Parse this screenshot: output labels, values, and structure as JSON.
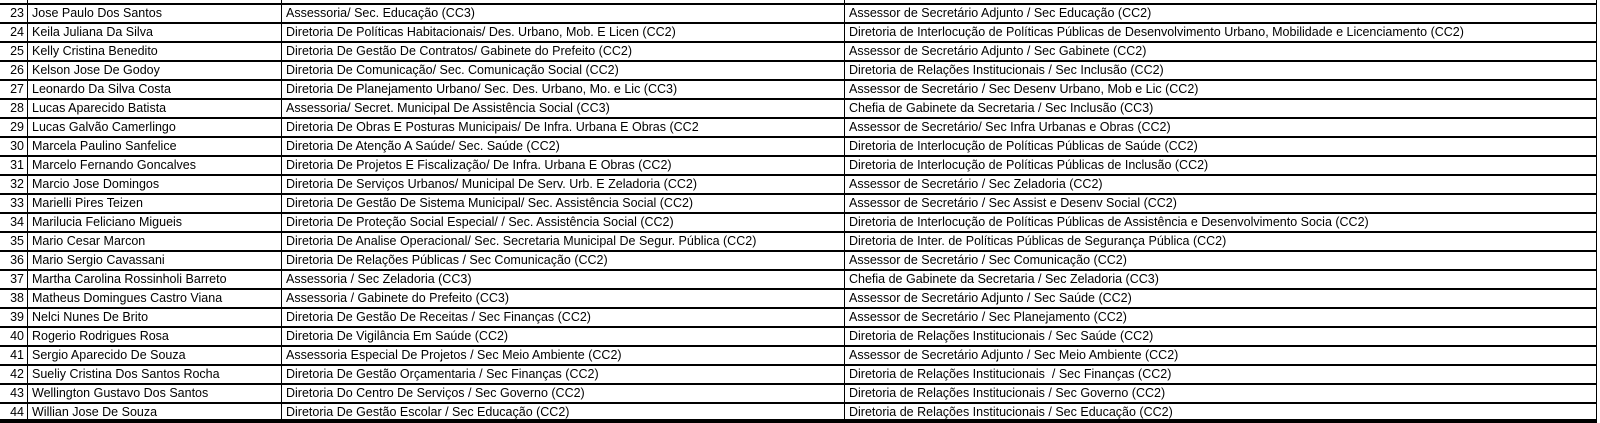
{
  "table": {
    "description_colors": {
      "border": "#000000",
      "text": "#000000",
      "background": "#ffffff"
    },
    "rows": [
      {
        "num": "23",
        "name": "Jose Paulo Dos Santos",
        "current": "Assessoria/ Sec. Educação (CC3)",
        "new": "Assessor de Secretário Adjunto / Sec Educação (CC2)"
      },
      {
        "num": "24",
        "name": "Keila Juliana Da Silva",
        "current": "Diretoria De Políticas Habitacionais/ Des. Urbano, Mob. E Licen (CC2)",
        "new": "Diretoria de Interlocução de Políticas Públicas de Desenvolvimento Urbano, Mobilidade e Licenciamento (CC2)"
      },
      {
        "num": "25",
        "name": "Kelly Cristina Benedito",
        "current": "Diretoria De Gestão De Contratos/ Gabinete do Prefeito (CC2)",
        "new": "Assessor de Secretário Adjunto / Sec Gabinete (CC2)"
      },
      {
        "num": "26",
        "name": "Kelson Jose De Godoy",
        "current": "Diretoria De Comunicação/ Sec. Comunicação Social (CC2)",
        "new": "Diretoria de Relações Institucionais / Sec Inclusão (CC2)"
      },
      {
        "num": "27",
        "name": "Leonardo Da Silva Costa",
        "current": "Diretoria De Planejamento Urbano/ Sec. Des. Urbano, Mo. e Lic (CC3)",
        "new": "Assessor de Secretário / Sec Desenv Urbano, Mob e Lic (CC2)"
      },
      {
        "num": "28",
        "name": "Lucas Aparecido Batista",
        "current": "Assessoria/ Secret. Municipal De Assistência Social (CC3)",
        "new": "Chefia de Gabinete da Secretaria / Sec Inclusão (CC3)"
      },
      {
        "num": "29",
        "name": "Lucas Galvão Camerlingo",
        "current": "Diretoria De Obras E Posturas Municipais/ De Infra. Urbana E Obras (CC2",
        "new": "Assessor de Secretário/ Sec Infra Urbanas e Obras (CC2)"
      },
      {
        "num": "30",
        "name": "Marcela Paulino Sanfelice",
        "current": "Diretoria De Atenção A Saúde/ Sec. Saúde (CC2)",
        "new": "Diretoria de Interlocução de Políticas Públicas de Saúde (CC2)"
      },
      {
        "num": "31",
        "name": "Marcelo Fernando Goncalves",
        "current": "Diretoria De Projetos E Fiscalização/ De Infra. Urbana E Obras (CC2)",
        "new": "Diretoria de Interlocução de Políticas Públicas de Inclusão (CC2)"
      },
      {
        "num": "32",
        "name": "Marcio Jose Domingos",
        "current": "Diretoria De Serviços Urbanos/ Municipal De Serv. Urb. E Zeladoria (CC2)",
        "new": "Assessor de Secretário / Sec Zeladoria (CC2)"
      },
      {
        "num": "33",
        "name": "Marielli Pires Teizen",
        "current": "Diretoria De Gestão De Sistema Municipal/ Sec. Assistência Social (CC2)",
        "new": "Assessor de Secretário / Sec Assist e Desenv Social (CC2)"
      },
      {
        "num": "34",
        "name": "Marilucia Feliciano Migueis",
        "current": "Diretoria De Proteção Social Especial/ / Sec. Assistência Social (CC2)",
        "new": "Diretoria de Interlocução de Políticas Públicas de Assistência e Desenvolvimento Socia (CC2)"
      },
      {
        "num": "35",
        "name": "Mario Cesar Marcon",
        "current": "Diretoria De Analise Operacional/ Sec. Secretaria Municipal De Segur. Pública (CC2)",
        "new": "Diretoria de Inter. de Políticas Públicas de Segurança Pública (CC2)"
      },
      {
        "num": "36",
        "name": "Mario Sergio Cavassani",
        "current": "Diretoria De Relações Públicas / Sec Comunicação (CC2)",
        "new": "Assessor de Secretário / Sec Comunicação (CC2)"
      },
      {
        "num": "37",
        "name": "Martha Carolina Rossinholi Barreto",
        "current": "Assessoria / Sec Zeladoria (CC3)",
        "new": "Chefia de Gabinete da Secretaria / Sec Zeladoria (CC3)"
      },
      {
        "num": "38",
        "name": "Matheus Domingues Castro Viana",
        "current": "Assessoria / Gabinete do Prefeito (CC3)",
        "new": "Assessor de Secretário Adjunto / Sec Saúde (CC2)"
      },
      {
        "num": "39",
        "name": "Nelci Nunes De Brito",
        "current": "Diretoria De Gestão De Receitas / Sec Finanças (CC2)",
        "new": "Assessor de Secretário / Sec Planejamento (CC2)"
      },
      {
        "num": "40",
        "name": "Rogerio Rodrigues Rosa",
        "current": "Diretoria De Vigilância Em Saúde (CC2)",
        "new": "Diretoria de Relações Institucionais / Sec Saúde (CC2)"
      },
      {
        "num": "41",
        "name": "Sergio Aparecido De Souza",
        "current": "Assessoria Especial De Projetos / Sec Meio Ambiente (CC2)",
        "new": "Assessor de Secretário Adjunto / Sec Meio Ambiente (CC2)"
      },
      {
        "num": "42",
        "name": "Sueliy Cristina Dos Santos Rocha",
        "current": "Diretoria De Gestão Orçamentaria / Sec Finanças (CC2)",
        "new": "Diretoria de Relações Institucionais  / Sec Finanças (CC2)"
      },
      {
        "num": "43",
        "name": "Wellington Gustavo Dos Santos",
        "current": "Diretoria Do Centro De Serviços / Sec Governo (CC2)",
        "new": "Diretoria de Relações Institucionais / Sec Governo (CC2)"
      },
      {
        "num": "44",
        "name": "Willian Jose De Souza",
        "current": "Diretoria De Gestão Escolar / Sec Educação (CC2)",
        "new": "Diretoria de Relações Institucionais / Sec Educação (CC2)"
      }
    ]
  }
}
